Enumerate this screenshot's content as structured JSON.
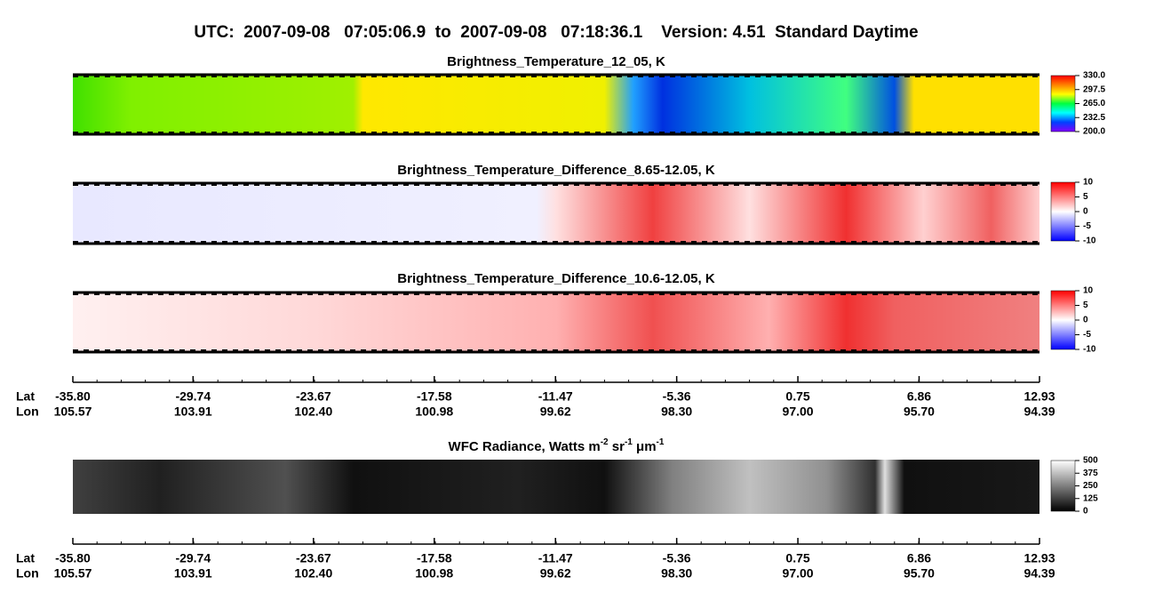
{
  "title": "UTC:  2007-09-08   07:05:06.9  to  2007-09-08   07:18:36.1    Version: 4.51  Standard Daytime",
  "chart_data": [
    {
      "type": "heatmap",
      "title": [
        "Brightness_Temperature_12_05, K"
      ],
      "zlim": [
        200,
        330
      ],
      "colorscale": [
        "#8000ff",
        "#0040ff",
        "#00ffff",
        "#00ff40",
        "#ffff00",
        "#ff8000",
        "#ff0000"
      ],
      "zticks": [
        {
          "value": 330,
          "label": "330.0"
        },
        297.5,
        {
          "value": 265,
          "label": "265.0"
        },
        232.5,
        {
          "value": 200,
          "label": "200.0"
        }
      ]
    },
    {
      "type": "heatmap",
      "title": [
        "Brightness_Temperature_Difference_8.65-12.05, K"
      ],
      "zlim": [
        -10,
        10
      ],
      "colorscale": [
        "#0000ff",
        "#ffffff",
        "#ff0000"
      ],
      "zticks": [
        10,
        5,
        0,
        -5,
        -10
      ]
    },
    {
      "type": "heatmap",
      "title": [
        "Brightness_Temperature_Difference_10.6-12.05, K"
      ],
      "zlim": [
        -10,
        10
      ],
      "colorscale": [
        "#0000ff",
        "#ffffff",
        "#ff0000"
      ],
      "zticks": [
        10,
        5,
        0,
        -5,
        -10
      ],
      "xlabel": "Lat",
      "x2label": "Lon",
      "xlim": [
        -35.8,
        12.93
      ],
      "xticks": [
        {
          "value": -35.8,
          "label": "-35.80"
        },
        -29.74,
        -23.67,
        -17.58,
        -11.47,
        -5.36,
        0.75,
        6.86,
        12.93
      ],
      "x2ticks": [
        105.57,
        103.91,
        {
          "value": 102.4,
          "label": "102.40"
        },
        100.98,
        99.62,
        {
          "value": 98.3,
          "label": "98.30"
        },
        {
          "value": 97,
          "label": "97.00"
        },
        {
          "value": 95.7,
          "label": "95.70"
        },
        94.39
      ]
    },
    {
      "type": "heatmap",
      "title": [
        "WFC Radiance, Watts m",
        "-2",
        " sr",
        "-1",
        " μm",
        "-1"
      ],
      "zlim": [
        0,
        500
      ],
      "colorscale": [
        "#000000",
        "#ffffff"
      ],
      "zticks": [
        500,
        375,
        250,
        125,
        0
      ],
      "xlabel": "Lat",
      "x2label": "Lon",
      "xlim": [
        -35.8,
        12.93
      ],
      "xticks": [
        {
          "value": -35.8,
          "label": "-35.80"
        },
        -29.74,
        -23.67,
        -17.58,
        -11.47,
        -5.36,
        0.75,
        6.86,
        12.93
      ],
      "x2ticks": [
        105.57,
        103.91,
        {
          "value": 102.4,
          "label": "102.40"
        },
        100.98,
        99.62,
        {
          "value": 98.3,
          "label": "98.30"
        },
        {
          "value": 97,
          "label": "97.00"
        },
        {
          "value": 95.7,
          "label": "95.70"
        },
        94.39
      ]
    }
  ]
}
